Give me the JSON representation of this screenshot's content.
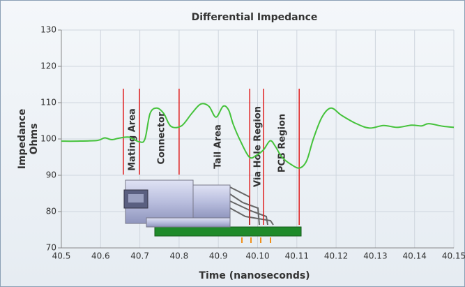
{
  "chart_data": {
    "type": "line",
    "title": "Differential Impedance",
    "xlabel": "Time (nanoseconds)",
    "ylabel": [
      "Impedance",
      "Ohms"
    ],
    "xlim": [
      40.5,
      41.5
    ],
    "xticks": [
      40.5,
      40.6,
      40.7,
      40.8,
      40.9,
      {
        "value": 41.0,
        "label": "40.10"
      },
      {
        "value": 41.1,
        "label": "40.11"
      },
      {
        "value": 41.2,
        "label": "40.12"
      },
      {
        "value": 41.3,
        "label": "40.13"
      },
      {
        "value": 41.4,
        "label": "40.14"
      },
      {
        "value": 41.5,
        "label": "40.15"
      }
    ],
    "ylim": [
      70,
      130
    ],
    "yticks": [
      70,
      80,
      90,
      100,
      110,
      120,
      130
    ],
    "grid": true,
    "series": [
      {
        "color": "#44c23a",
        "x": [
          40.5,
          40.539,
          40.592,
          40.61,
          40.628,
          40.646,
          40.672,
          40.699,
          40.713,
          40.726,
          40.743,
          40.761,
          40.779,
          40.806,
          40.832,
          40.855,
          40.876,
          40.894,
          40.912,
          40.926,
          40.938,
          40.956,
          40.979,
          40.997,
          41.015,
          41.032,
          41.045,
          41.062,
          41.085,
          41.107,
          41.125,
          41.142,
          41.164,
          41.187,
          41.214,
          41.25,
          41.285,
          41.321,
          41.356,
          41.392,
          41.418,
          41.436,
          41.472,
          41.5
        ],
        "values": [
          99.4,
          99.4,
          99.6,
          100.3,
          99.8,
          100.2,
          100.5,
          99.2,
          100,
          107,
          108.5,
          107,
          103.5,
          103.6,
          107,
          109.6,
          109,
          106,
          109,
          108,
          104,
          99.5,
          95,
          95.5,
          97,
          99.5,
          98,
          95,
          93,
          92,
          94,
          100,
          106,
          108.5,
          106.5,
          104.3,
          103,
          103.7,
          103.2,
          103.8,
          103.6,
          104.2,
          103.5,
          103.2
        ]
      }
    ],
    "region_boundaries": [
      40.658,
      40.699,
      40.8,
      40.98,
      41.015,
      41.106
    ],
    "region_boundary_color": "#e02020",
    "regions": [
      "Mating Area",
      "Connector",
      "Tail Area",
      "Via Hole Region",
      "PCB Region"
    ]
  }
}
